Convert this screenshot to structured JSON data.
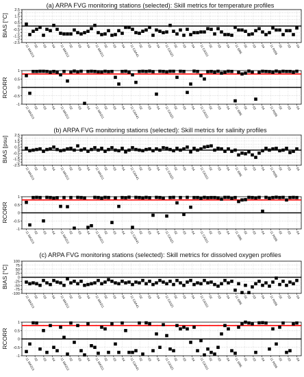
{
  "xticks": [
    "11 MA313",
    "02",
    "03",
    "04",
    "11 MA312",
    "02",
    "03",
    "04",
    "11 MA311",
    "02",
    "03",
    "04",
    "11 CAA41",
    "02",
    "03",
    "04",
    "11 CA321",
    "02",
    "03",
    "04",
    "11 CA311",
    "02",
    "03",
    "04",
    "11 I085",
    "02",
    "03",
    "04",
    "11 P055",
    "02",
    "03",
    "04"
  ],
  "chart_data": [
    {
      "type": "scatter",
      "title": "(a) ARPA FVG monitoring stations (selected): Skill metrics for temperature profiles",
      "ylabel": "BIAS [°C]",
      "ylim": [
        -2.5,
        2.5
      ],
      "yticks": [
        "2.5",
        "2",
        "1.5",
        "1",
        "0.5",
        "0",
        "-0.5",
        "-1",
        "-1.5",
        "-2",
        "-2.5"
      ],
      "grid": true,
      "values": [
        0.3,
        -1.3,
        -0.8,
        -0.5,
        -0.2,
        -1.4,
        -0.5,
        -0.7,
        0.1,
        -0.5,
        -1.1,
        -1.2,
        -1.2,
        -1.2,
        -0.6,
        -1.0,
        -1.2,
        -1.0,
        -0.8,
        -0.4,
        0.1,
        -1.0,
        -1.3,
        -1.2,
        -0.7,
        -1.4,
        -1.3,
        -0.7,
        -1.1,
        -0.2,
        -0.2,
        -0.5,
        -1.0,
        -1.1,
        -0.8,
        -0.6,
        -0.2,
        -1.4,
        -0.6,
        -0.8,
        -1.0,
        -0.9,
        0.1,
        -0.8,
        -1.2,
        -0.6,
        -1.4,
        -0.5,
        -1.3,
        -1.0,
        -1.0,
        -0.9,
        -0.9,
        -0.4,
        -0.5,
        -1.2,
        -0.4,
        -0.9,
        -1.3,
        -1.3,
        -1.4,
        -0.2,
        -0.6,
        -0.6,
        -0.8,
        -1.3,
        -1.2,
        -0.7,
        -0.4,
        -0.9,
        -1.3,
        -1.0,
        -0.3,
        -0.6,
        -0.6,
        -1.3,
        -0.7,
        -0.7,
        -1.3,
        -0.3
      ]
    },
    {
      "type": "scatter",
      "title": "",
      "ylabel": "RCORR",
      "ylim": [
        -1,
        1
      ],
      "yticks": [
        "1",
        "0.5",
        "0",
        "-0.5",
        "-1"
      ],
      "grid": true,
      "reference_line": 0.8,
      "values": [
        0.7,
        -0.35,
        0.95,
        0.95,
        0.96,
        0.96,
        0.95,
        0.9,
        0.95,
        0.9,
        0.75,
        0.95,
        0.38,
        0.92,
        0.97,
        0.93,
        0.96,
        -0.95,
        0.95,
        0.96,
        0.95,
        0.93,
        0.92,
        0.96,
        0.94,
        0.95,
        0.6,
        0.2,
        0.95,
        0.96,
        0.9,
        0.75,
        0.3,
        0.95,
        0.96,
        0.95,
        0.97,
        0.94,
        -0.4,
        0.96,
        0.95,
        0.93,
        0.96,
        0.96,
        0.6,
        0.96,
        0.95,
        -0.3,
        0.2,
        0.97,
        0.95,
        0.7,
        0.5,
        0.94,
        0.95,
        0.9,
        0.96,
        0.85,
        0.9,
        0.96,
        0.95,
        -0.8,
        0.9,
        0.8,
        0.85,
        0.97,
        0.92,
        -0.7,
        0.9,
        0.96,
        0.95,
        0.94,
        0.9,
        0.97,
        0.93,
        0.96,
        0.95,
        0.95,
        0.9,
        0.96
      ]
    },
    {
      "type": "scatter",
      "title": "(b) ARPA FVG monitoring stations (selected): Skill metrics for salinity profiles",
      "ylabel": "BIAS [psu]",
      "ylim": [
        -2.5,
        2.5
      ],
      "yticks": [
        "2.5",
        "2",
        "1.5",
        "1",
        "0.5",
        "0",
        "-0.5",
        "-1",
        "-1.5",
        "-2",
        "-2.5"
      ],
      "grid": true,
      "values": [
        0.3,
        -0.1,
        0.0,
        0.1,
        0.2,
        -0.2,
        0.1,
        0.2,
        0.5,
        0.1,
        -0.1,
        0.0,
        0.2,
        0.3,
        0.0,
        0.7,
        0.0,
        0.2,
        -0.2,
        0.1,
        0.4,
        0.0,
        0.3,
        -0.2,
        0.1,
        0.4,
        0.0,
        -0.1,
        0.3,
        -0.3,
        0.0,
        0.4,
        0.1,
        0.0,
        -0.1,
        0.1,
        0.2,
        -0.1,
        0.2,
        0.0,
        0.4,
        0.3,
        0.1,
        -0.1,
        0.3,
        0.0,
        0.2,
        0.5,
        -0.3,
        0.3,
        0.0,
        0.2,
        0.5,
        0.6,
        0.7,
        0.0,
        0.3,
        0.2,
        -0.2,
        0.2,
        -0.2,
        0.0,
        -0.8,
        -0.5,
        -0.6,
        -0.3,
        -0.8,
        -1.2,
        -0.5,
        -0.1,
        0.3,
        0.0,
        0.2,
        0.3,
        -0.1,
        0.0,
        0.3,
        -0.4,
        -0.2,
        0.2
      ]
    },
    {
      "type": "scatter",
      "title": "",
      "ylabel": "RCORR",
      "ylim": [
        -1,
        1
      ],
      "yticks": [
        "1",
        "0.5",
        "0",
        "-0.5",
        "-1"
      ],
      "grid": true,
      "reference_line": 0.8,
      "values": [
        0.65,
        -0.75,
        0.95,
        0.96,
        0.95,
        -0.5,
        0.96,
        0.95,
        0.92,
        0.94,
        0.4,
        0.95,
        0.38,
        0.95,
        -0.95,
        0.96,
        0.95,
        0.93,
        -0.9,
        -0.8,
        0.96,
        0.95,
        0.9,
        0.96,
        0.95,
        -0.6,
        0.93,
        0.4,
        0.95,
        0.94,
        0.97,
        -0.9,
        0.96,
        0.95,
        0.93,
        0.96,
        0.94,
        -0.15,
        0.96,
        0.95,
        0.92,
        -0.2,
        0.95,
        0.96,
        0.62,
        0.95,
        -0.1,
        0.96,
        0.35,
        0.95,
        0.95,
        0.9,
        0.96,
        0.94,
        0.95,
        0.95,
        0.93,
        0.85,
        0.96,
        0.96,
        0.9,
        0.95,
        0.7,
        0.8,
        0.82,
        0.96,
        0.95,
        0.93,
        0.96,
        0.1,
        0.96,
        0.9,
        0.95,
        0.97,
        0.95,
        0.96,
        0.8,
        0.95,
        0.96,
        0.95
      ]
    },
    {
      "type": "scatter",
      "title": "(c) ARPA FVG monitoring stations (selected): Skill metrics for dissolved oxygen profiles",
      "ylabel": "BIAS [°C]",
      "ylim": [
        -100,
        100
      ],
      "yticks": [
        "100",
        "75",
        "50",
        "25",
        "0",
        "-25",
        "-50",
        "-75",
        "-100"
      ],
      "grid": true,
      "values": [
        -30,
        -40,
        -35,
        -40,
        -50,
        -20,
        -35,
        -45,
        -20,
        -30,
        -35,
        -50,
        -10,
        -35,
        -25,
        -40,
        -25,
        -50,
        -45,
        -40,
        -35,
        -20,
        -40,
        -30,
        -15,
        -25,
        -35,
        -40,
        -25,
        -35,
        -30,
        -45,
        -30,
        -35,
        -20,
        -40,
        -25,
        -45,
        -35,
        -20,
        -30,
        -40,
        -25,
        -45,
        -20,
        -35,
        -50,
        -30,
        -20,
        -45,
        -35,
        -40,
        -20,
        -35,
        -30,
        -45,
        -55,
        -40,
        -20,
        -35,
        -25,
        -80,
        -40,
        -95,
        -50,
        -95,
        -60,
        -40,
        -25,
        -50,
        -35,
        -55,
        -30,
        -5,
        -45,
        -25,
        -50,
        -30,
        -40,
        -20
      ]
    },
    {
      "type": "scatter",
      "title": "",
      "ylabel": "RCORR",
      "ylim": [
        -1,
        1
      ],
      "yticks": [
        "1",
        "0.5",
        "0",
        "-0.5",
        "-1"
      ],
      "grid": true,
      "reference_line": 0.8,
      "values": [
        -0.75,
        -0.3,
        0.96,
        0.95,
        -0.6,
        0.5,
        -0.8,
        0.8,
        -0.5,
        -0.7,
        0.7,
        0.1,
        -0.9,
        0.95,
        -0.2,
        0.8,
        -0.7,
        -0.95,
        0.9,
        -0.4,
        -0.5,
        -0.85,
        0.7,
        0.6,
        -0.8,
        0.9,
        -0.3,
        -0.8,
        0.95,
        0.5,
        -0.8,
        -0.8,
        -0.7,
        0.95,
        -0.9,
        0.96,
        0.9,
        -0.7,
        0.3,
        -0.5,
        0.85,
        0.2,
        -0.6,
        -0.7,
        0.8,
        0.6,
        0.7,
        0.6,
        -0.2,
        0.7,
        -0.7,
        -0.1,
        -0.95,
        -0.6,
        -0.8,
        -0.9,
        -0.5,
        0.3,
        0.8,
        0.6,
        -0.7,
        -0.85,
        0.7,
        0.9,
        1.0,
        0.95,
        0.9,
        -0.8,
        0.96,
        0.97,
        0.95,
        -0.6,
        0.6,
        -0.3,
        0.7,
        0.95,
        -0.8,
        -0.7,
        0.9,
        0.95
      ]
    }
  ]
}
